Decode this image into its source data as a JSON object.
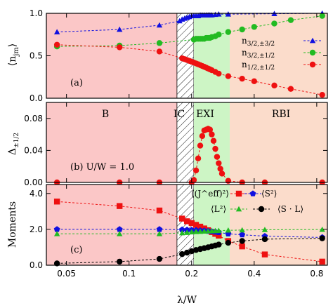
{
  "chart_data": [
    {
      "type": "line",
      "panel_label": "(a)",
      "ylabel": "⟨n_jm⟩",
      "ylim": [
        0.0,
        1.0
      ],
      "yticks": [
        "0.0",
        "0.5",
        "1.0"
      ],
      "series": [
        {
          "name": "n_{3/2,±3/2}",
          "color": "#1010e0",
          "marker": "triangle",
          "x": [
            0.045,
            0.09,
            0.14,
            0.175,
            0.18,
            0.185,
            0.19,
            0.195,
            0.2,
            0.205,
            0.21,
            0.215,
            0.22,
            0.225,
            0.23,
            0.235,
            0.24,
            0.245,
            0.25,
            0.26,
            0.27,
            0.3,
            0.5,
            0.85
          ],
          "values": [
            0.78,
            0.81,
            0.86,
            0.91,
            0.93,
            0.94,
            0.95,
            0.96,
            0.97,
            0.97,
            0.97,
            0.97,
            0.98,
            0.98,
            0.98,
            0.98,
            0.98,
            0.98,
            0.98,
            0.985,
            0.99,
            0.99,
            0.995,
            1.0
          ]
        },
        {
          "name": "n_{3/2,±1/2}",
          "color": "#22bb22",
          "marker": "circle",
          "x": [
            0.045,
            0.09,
            0.14,
            0.205,
            0.21,
            0.215,
            0.22,
            0.225,
            0.23,
            0.235,
            0.24,
            0.245,
            0.25,
            0.26,
            0.27,
            0.3,
            0.35,
            0.4,
            0.5,
            0.6,
            0.85
          ],
          "values": [
            0.61,
            0.62,
            0.65,
            0.69,
            0.7,
            0.7,
            0.7,
            0.7,
            0.7,
            0.71,
            0.71,
            0.71,
            0.72,
            0.73,
            0.75,
            0.78,
            0.81,
            0.84,
            0.88,
            0.92,
            0.97
          ]
        },
        {
          "name": "n_{1/2,±1/2}",
          "color": "#ee1111",
          "marker": "circle",
          "x": [
            0.045,
            0.09,
            0.14,
            0.18,
            0.185,
            0.19,
            0.195,
            0.2,
            0.205,
            0.21,
            0.215,
            0.22,
            0.225,
            0.23,
            0.235,
            0.24,
            0.245,
            0.25,
            0.26,
            0.27,
            0.3,
            0.35,
            0.4,
            0.5,
            0.6,
            0.85
          ],
          "values": [
            0.63,
            0.6,
            0.55,
            0.47,
            0.46,
            0.45,
            0.44,
            0.43,
            0.42,
            0.41,
            0.4,
            0.39,
            0.38,
            0.37,
            0.36,
            0.35,
            0.34,
            0.33,
            0.31,
            0.29,
            0.26,
            0.23,
            0.2,
            0.15,
            0.11,
            0.04
          ]
        }
      ]
    },
    {
      "type": "line",
      "panel_label": "(b) U/W = 1.0",
      "ylabel": "Δ_{±1/2}",
      "ylim": [
        0.0,
        0.1
      ],
      "yticks": [
        "0.00",
        "0.04",
        "0.08"
      ],
      "regions": [
        {
          "label": "B",
          "from": 0.04,
          "to": 0.17,
          "color": "#fbc7c7"
        },
        {
          "label": "IC",
          "from": 0.17,
          "to": 0.205,
          "color": "hatched"
        },
        {
          "label": "EXI",
          "from": 0.205,
          "to": 0.305,
          "color": "#cdf5c5"
        },
        {
          "label": "RBI",
          "from": 0.305,
          "to": 0.9,
          "color": "#fbdccb"
        }
      ],
      "series": [
        {
          "name": "",
          "color": "#ee1111",
          "marker": "circle",
          "x": [
            0.045,
            0.09,
            0.14,
            0.2,
            0.205,
            0.21,
            0.215,
            0.22,
            0.225,
            0.23,
            0.235,
            0.24,
            0.245,
            0.25,
            0.255,
            0.26,
            0.265,
            0.27,
            0.275,
            0.28,
            0.3,
            0.35,
            0.45,
            0.85
          ],
          "values": [
            0,
            0,
            0,
            0,
            0.003,
            0.015,
            0.03,
            0.046,
            0.058,
            0.065,
            0.066,
            0.067,
            0.066,
            0.06,
            0.052,
            0.042,
            0.032,
            0.024,
            0.017,
            0.011,
            0.002,
            0,
            0,
            0
          ]
        }
      ]
    },
    {
      "type": "line",
      "panel_label": "(c)",
      "ylabel": "Moments",
      "ylim": [
        0.0,
        4.5
      ],
      "yticks": [
        "0.0",
        "2.0",
        "4.0"
      ],
      "xlabel": "λ/W",
      "xscale": "log",
      "xticks": [
        "0.05",
        "0.1",
        "0.2",
        "0.4",
        "0.8"
      ],
      "series": [
        {
          "name": "⟨(J^eff)²⟩",
          "color": "#ee1111",
          "marker": "square",
          "x": [
            0.045,
            0.09,
            0.14,
            0.18,
            0.19,
            0.2,
            0.21,
            0.22,
            0.23,
            0.24,
            0.25,
            0.26,
            0.27,
            0.3,
            0.35,
            0.45,
            0.85
          ],
          "values": [
            3.55,
            3.3,
            3.05,
            2.6,
            2.45,
            2.35,
            2.25,
            2.15,
            2.05,
            1.95,
            1.85,
            1.75,
            1.65,
            1.35,
            1.05,
            0.6,
            0.2
          ]
        },
        {
          "name": "⟨S²⟩",
          "color": "#1010e0",
          "marker": "pentagon",
          "x": [
            0.045,
            0.09,
            0.14,
            0.18,
            0.19,
            0.2,
            0.21,
            0.22,
            0.23,
            0.24,
            0.25,
            0.26,
            0.27,
            0.3,
            0.35,
            0.45,
            0.85
          ],
          "values": [
            2.0,
            2.0,
            2.0,
            1.98,
            1.97,
            1.96,
            1.95,
            1.93,
            1.92,
            1.9,
            1.88,
            1.86,
            1.83,
            1.75,
            1.7,
            1.62,
            1.55
          ]
        },
        {
          "name": "⟨L²⟩",
          "color": "#22bb22",
          "marker": "triangle",
          "x": [
            0.045,
            0.09,
            0.14,
            0.18,
            0.19,
            0.2,
            0.21,
            0.22,
            0.23,
            0.24,
            0.25,
            0.26,
            0.27,
            0.3,
            0.35,
            0.45,
            0.85
          ],
          "values": [
            1.75,
            1.75,
            1.75,
            1.8,
            1.82,
            1.85,
            1.87,
            1.88,
            1.89,
            1.9,
            1.91,
            1.92,
            1.93,
            1.95,
            1.96,
            1.98,
            1.99
          ]
        },
        {
          "name": "⟨S · L⟩",
          "color": "#000000",
          "marker": "circle",
          "x": [
            0.045,
            0.09,
            0.14,
            0.18,
            0.19,
            0.2,
            0.21,
            0.22,
            0.23,
            0.24,
            0.25,
            0.26,
            0.27,
            0.3,
            0.35,
            0.45,
            0.85
          ],
          "values": [
            0.1,
            0.2,
            0.35,
            0.62,
            0.7,
            0.78,
            0.85,
            0.9,
            0.95,
            1.0,
            1.05,
            1.1,
            1.15,
            1.25,
            1.35,
            1.45,
            1.5
          ]
        }
      ]
    }
  ]
}
